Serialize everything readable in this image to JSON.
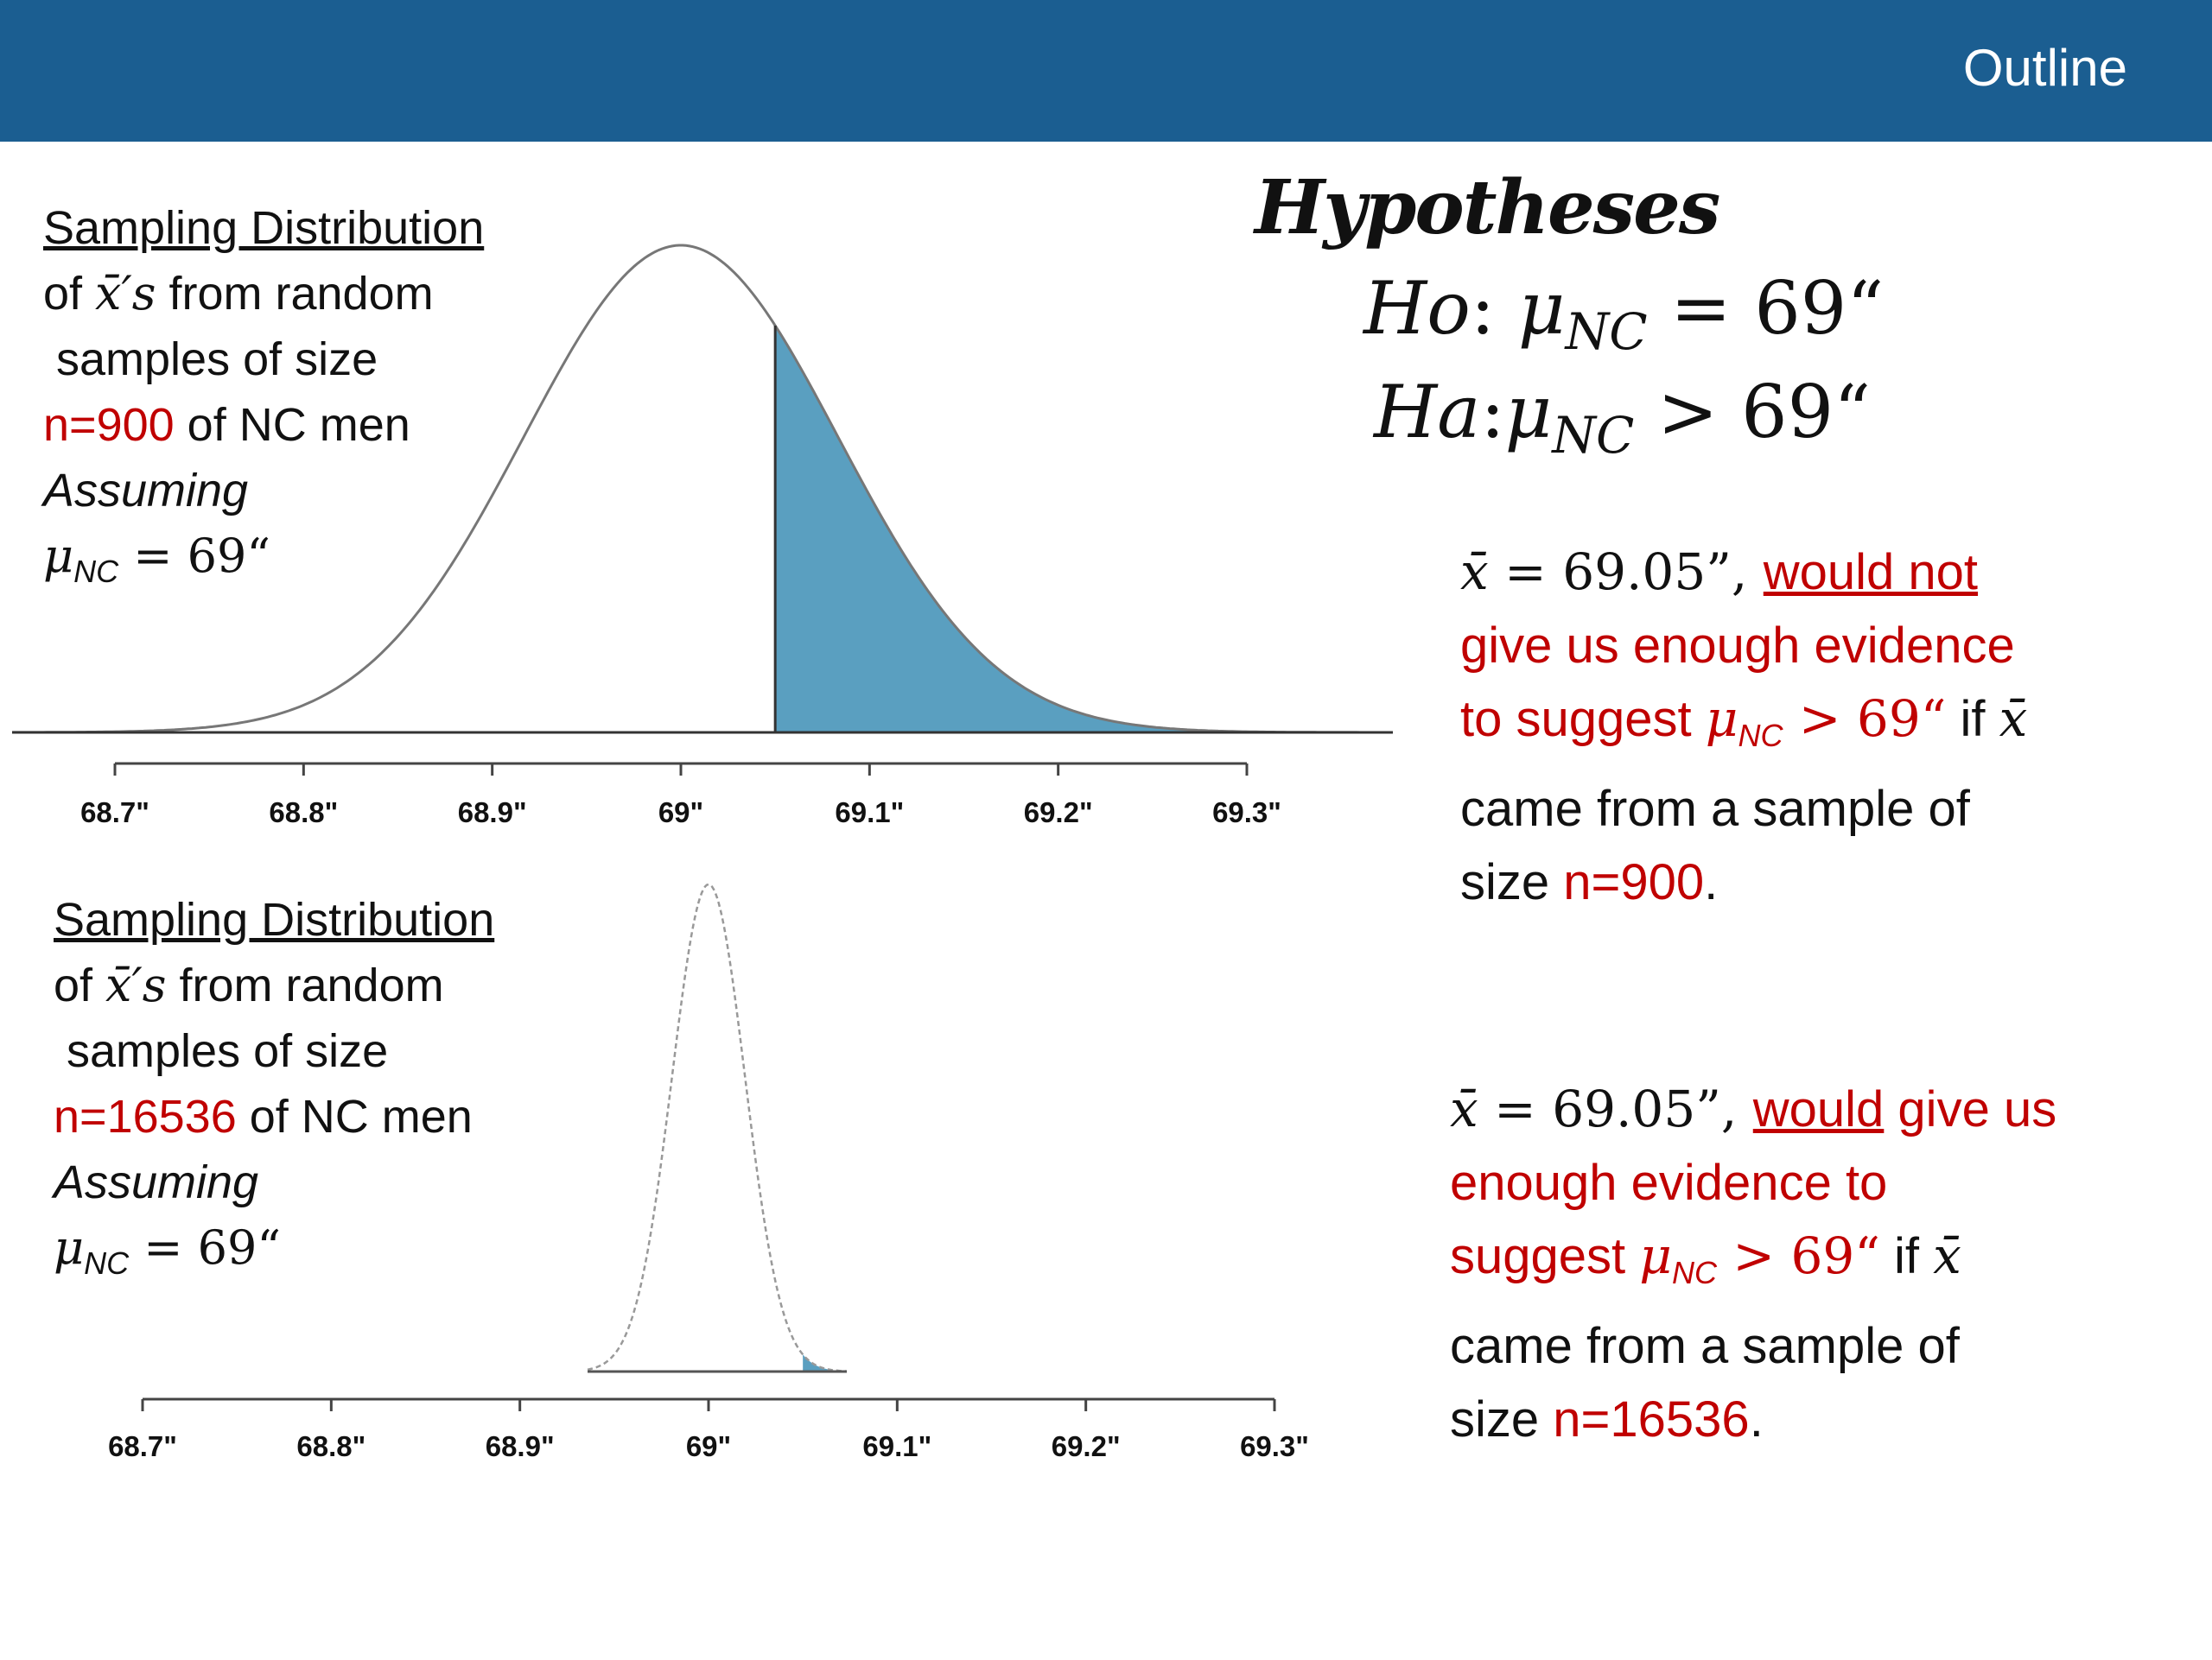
{
  "header": {
    "title": "Outline"
  },
  "top_panel": {
    "line1": "Sampling Distribution",
    "line2_pre": "of ",
    "line2_math": "x̄′s",
    "line2_post": " from random",
    "line3": " samples of size",
    "n_value": "n=900",
    "line4_post": " of NC men",
    "line5": "Assuming",
    "mu": "μ",
    "mu_sub": "NC",
    "mu_eq": " = 69“"
  },
  "bottom_panel": {
    "line1": "Sampling Distribution",
    "line2_pre": "of ",
    "line2_math": "x̄′s",
    "line2_post": " from random",
    "line3": " samples of size",
    "n_value": "n=16536",
    "line4_post": " of NC men",
    "line5": "Assuming",
    "mu": "μ",
    "mu_sub": "NC",
    "mu_eq": " = 69“"
  },
  "hypotheses": {
    "title": "Hypotheses",
    "h0_label": "Ho",
    "h0_colon": ": ",
    "h0_mu": "μ",
    "h0_sub": "NC",
    "h0_rest": " = 69“",
    "ha_label": "Ha",
    "ha_colon": ":",
    "ha_mu": "μ",
    "ha_sub": "NC",
    "ha_rest": " > 69“"
  },
  "conclusion_top": {
    "xbar": "x̄",
    "eq": " = 69.05”, ",
    "would_not": "would not",
    "line2": "give us enough evidence",
    "line3_pre": "to suggest ",
    "mu": "μ",
    "mu_sub": "NC",
    "gt": " > 69“",
    "if_text": " if ",
    "xbar2": "x̄",
    "line4": "came from a sample of",
    "size_text": "size ",
    "n_value": "n=900",
    "period": "."
  },
  "conclusion_bottom": {
    "xbar": "x̄",
    "eq": " = 69.05”, ",
    "would": "would",
    "give_us": " give us",
    "line2": "enough evidence to",
    "line3_pre": "suggest ",
    "mu": "μ",
    "mu_sub": "NC",
    "gt": " > 69“",
    "if_text": " if ",
    "xbar2": "x̄",
    "line4": "came from a sample of",
    "size_text": "size ",
    "n_value": "n=16536",
    "period": "."
  },
  "chart_data": [
    {
      "type": "area",
      "distribution": "normal",
      "mean": 69,
      "sd": 0.0833,
      "shaded_from": 69.05,
      "x_ticks": [
        "68.7\"",
        "68.8\"",
        "68.9\"",
        "69\"",
        "69.1\"",
        "69.2\"",
        "69.3\""
      ],
      "xlim": [
        68.7,
        69.3
      ],
      "shade_color": "#5a9fc0"
    },
    {
      "type": "area",
      "distribution": "normal",
      "mean": 69,
      "sd": 0.0193,
      "shaded_from": 69.05,
      "x_ticks": [
        "68.7\"",
        "68.8\"",
        "68.9\"",
        "69\"",
        "69.1\"",
        "69.2\"",
        "69.3\""
      ],
      "xlim": [
        68.7,
        69.3
      ],
      "shade_color": "#5a9fc0"
    }
  ]
}
